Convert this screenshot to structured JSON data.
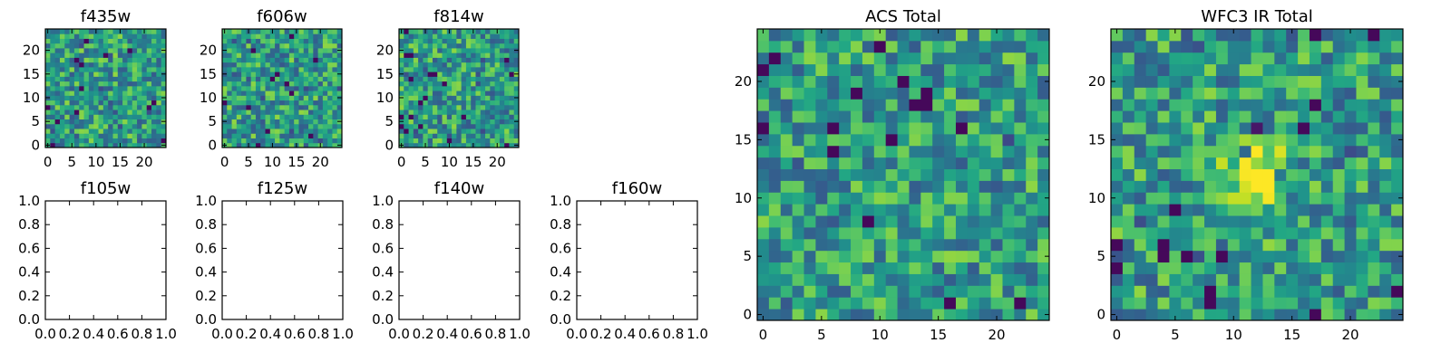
{
  "figure": {
    "background": "#ffffff",
    "colormap": "viridis"
  },
  "chart_data": [
    {
      "type": "heatmap",
      "title": "f435w",
      "pixel_grid": [
        25,
        25
      ],
      "xticks": [
        "0",
        "5",
        "10",
        "15",
        "20"
      ],
      "yticks": [
        "0",
        "5",
        "10",
        "15",
        "20"
      ],
      "xlim": [
        -0.5,
        24.5
      ],
      "ylim": [
        -0.5,
        24.5
      ],
      "grid": false,
      "value_distribution": "mostly green-yellow noise, sparse dark-purple pixels"
    },
    {
      "type": "heatmap",
      "title": "f606w",
      "pixel_grid": [
        25,
        25
      ],
      "xticks": [
        "0",
        "5",
        "10",
        "15",
        "20"
      ],
      "yticks": [
        "0",
        "5",
        "10",
        "15",
        "20"
      ],
      "xlim": [
        -0.5,
        24.5
      ],
      "ylim": [
        -0.5,
        24.5
      ],
      "grid": false,
      "value_distribution": "mostly green-yellow noise, sparse dark-purple pixels"
    },
    {
      "type": "heatmap",
      "title": "f814w",
      "pixel_grid": [
        25,
        25
      ],
      "xticks": [
        "0",
        "5",
        "10",
        "15",
        "20"
      ],
      "yticks": [
        "0",
        "5",
        "10",
        "15",
        "20"
      ],
      "xlim": [
        -0.5,
        24.5
      ],
      "ylim": [
        -0.5,
        24.5
      ],
      "grid": false,
      "value_distribution": "mostly green-yellow noise, sparse dark-purple pixels"
    },
    {
      "type": "empty",
      "title": "f105w",
      "xticks": [
        "0.0",
        "0.2",
        "0.4",
        "0.6",
        "0.8",
        "1.0"
      ],
      "yticks": [
        "0.0",
        "0.2",
        "0.4",
        "0.6",
        "0.8",
        "1.0"
      ],
      "xlim": [
        0,
        1
      ],
      "ylim": [
        0,
        1
      ]
    },
    {
      "type": "empty",
      "title": "f125w",
      "xticks": [
        "0.0",
        "0.2",
        "0.4",
        "0.6",
        "0.8",
        "1.0"
      ],
      "yticks": [
        "0.0",
        "0.2",
        "0.4",
        "0.6",
        "0.8",
        "1.0"
      ],
      "xlim": [
        0,
        1
      ],
      "ylim": [
        0,
        1
      ]
    },
    {
      "type": "empty",
      "title": "f140w",
      "xticks": [
        "0.0",
        "0.2",
        "0.4",
        "0.6",
        "0.8",
        "1.0"
      ],
      "yticks": [
        "0.0",
        "0.2",
        "0.4",
        "0.6",
        "0.8",
        "1.0"
      ],
      "xlim": [
        0,
        1
      ],
      "ylim": [
        0,
        1
      ]
    },
    {
      "type": "empty",
      "title": "f160w",
      "xticks": [
        "0.0",
        "0.2",
        "0.4",
        "0.6",
        "0.8",
        "1.0"
      ],
      "yticks": [
        "0.0",
        "0.2",
        "0.4",
        "0.6",
        "0.8",
        "1.0"
      ],
      "xlim": [
        0,
        1
      ],
      "ylim": [
        0,
        1
      ]
    },
    {
      "type": "heatmap",
      "title": "ACS Total",
      "pixel_grid": [
        25,
        25
      ],
      "xticks": [
        "0",
        "5",
        "10",
        "15",
        "20"
      ],
      "yticks": [
        "0",
        "5",
        "10",
        "15",
        "20"
      ],
      "xlim": [
        -0.5,
        24.5
      ],
      "ylim": [
        -0.5,
        24.5
      ],
      "grid": false,
      "value_distribution": "mostly green-yellow noise, a few dark-purple pixels"
    },
    {
      "type": "heatmap",
      "title": "WFC3 IR Total",
      "pixel_grid": [
        25,
        25
      ],
      "xticks": [
        "0",
        "5",
        "10",
        "15",
        "20"
      ],
      "yticks": [
        "0",
        "5",
        "10",
        "15",
        "20"
      ],
      "xlim": [
        -0.5,
        24.5
      ],
      "ylim": [
        -0.5,
        24.5
      ],
      "grid": false,
      "value_distribution": "green noise with a bright yellow blob near (12, 12) and scattered dark pixels"
    }
  ]
}
